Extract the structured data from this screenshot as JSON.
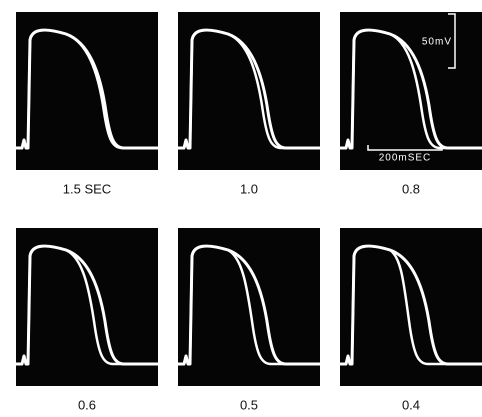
{
  "panels": [
    {
      "label": "1.5 SEC"
    },
    {
      "label": "1.0"
    },
    {
      "label": "0.8"
    },
    {
      "label": "0.6"
    },
    {
      "label": "0.5"
    },
    {
      "label": "0.4"
    }
  ],
  "scale": {
    "voltage": "50mV",
    "time": "200mSEC"
  }
}
